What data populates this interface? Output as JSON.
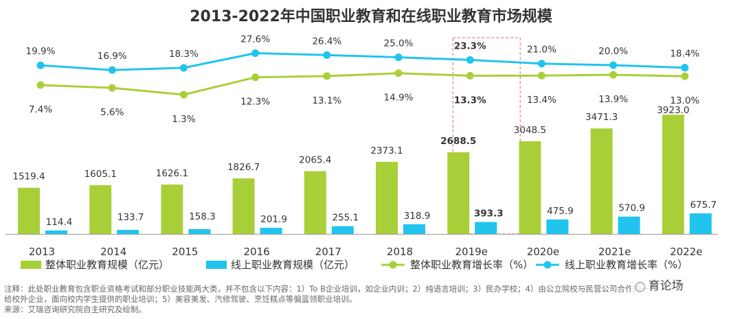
{
  "chart_data": {
    "type": "bar+line",
    "title": "2013-2022年中国职业教育和在线职业教育市场规模",
    "categories": [
      "2013",
      "2014",
      "2015",
      "2016",
      "2017",
      "2018",
      "2019e",
      "2020e",
      "2021e",
      "2022e"
    ],
    "highlight_category": "2019e",
    "bar_series": [
      {
        "name": "整体职业教育规模（亿元）",
        "color": "#a9cf38",
        "values": [
          1519.4,
          1605.1,
          1626.1,
          1826.7,
          2065.4,
          2373.1,
          2688.5,
          3048.5,
          3471.3,
          3923.0
        ],
        "labels": [
          "1519.4",
          "1605.1",
          "1626.1",
          "1826.7",
          "2065.4",
          "2373.1",
          "2688.5",
          "3048.5",
          "3471.3",
          "3923.0"
        ]
      },
      {
        "name": "线上职业教育规模（亿元）",
        "color": "#21c4ee",
        "values": [
          114.4,
          133.7,
          158.3,
          201.9,
          255.1,
          318.9,
          393.3,
          475.9,
          570.9,
          675.7
        ],
        "labels": [
          "114.4",
          "133.7",
          "158.3",
          "201.9",
          "255.1",
          "318.9",
          "393.3",
          "475.9",
          "570.9",
          "675.7"
        ]
      }
    ],
    "line_series": [
      {
        "name": "整体职业教育增长率（%）",
        "color": "#a9cf38",
        "values": [
          7.4,
          5.6,
          1.3,
          12.3,
          13.1,
          14.9,
          13.3,
          13.4,
          13.9,
          13.0
        ],
        "labels": [
          "7.4%",
          "5.6%",
          "1.3%",
          "12.3%",
          "13.1%",
          "14.9%",
          "13.3%",
          "13.4%",
          "13.9%",
          "13.0%"
        ]
      },
      {
        "name": "线上职业教育增长率（%）",
        "color": "#21c4ee",
        "values": [
          19.9,
          16.9,
          18.3,
          27.6,
          26.4,
          25.0,
          23.3,
          21.0,
          20.0,
          18.4
        ],
        "labels": [
          "19.9%",
          "16.9%",
          "18.3%",
          "27.6%",
          "26.4%",
          "25.0%",
          "23.3%",
          "21.0%",
          "20.0%",
          "18.4%"
        ]
      }
    ],
    "xlabel": "",
    "ylabel": "",
    "grid": false,
    "legend_position": "bottom"
  },
  "notes": [
    "注释：此处职业教育包含职业资格考试和部分职业技能两大类，并不包含以下内容：1）To B企业培训，如企业内训；2）纯语言培训；3）民办学校；4）由公立院校与民营公司合作的一款",
    "给校外企业，面向校内学生提供的职业培训；5）美容美发、汽修驾驶、烹饪糕点等偏蓝领职业培训。",
    "来源：艾瑞咨询研究院自主研究及绘制。"
  ],
  "watermark": "育论场",
  "watermark_icon": "chat-bubble-icon"
}
